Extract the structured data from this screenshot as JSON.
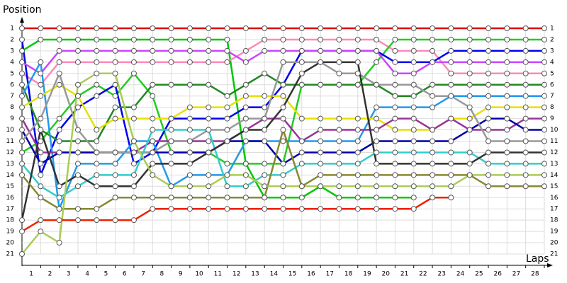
{
  "chart_data": {
    "type": "line",
    "ylabel": "Position",
    "xlabel": "Laps",
    "xlim": [
      0,
      28
    ],
    "xticks": [
      1,
      2,
      3,
      4,
      5,
      6,
      7,
      8,
      9,
      10,
      11,
      12,
      13,
      14,
      15,
      16,
      17,
      18,
      19,
      20,
      21,
      22,
      23,
      24,
      25,
      26,
      27,
      28
    ],
    "ylim": [
      1,
      21
    ],
    "yticks": [
      1,
      2,
      3,
      4,
      5,
      6,
      7,
      8,
      9,
      10,
      11,
      12,
      13,
      14,
      15,
      16,
      17,
      18,
      19,
      20,
      21
    ],
    "y_inverted": true,
    "grid": true,
    "series": [
      {
        "color": "#e00000",
        "values": [
          1,
          1,
          1,
          1,
          1,
          1,
          1,
          1,
          1,
          1,
          1,
          1,
          1,
          1,
          1,
          1,
          1,
          1,
          1,
          1,
          1,
          1,
          1,
          1,
          1,
          1,
          1,
          1,
          1
        ]
      },
      {
        "color": "#00c800",
        "values": [
          3,
          2,
          2,
          2,
          2,
          2,
          2,
          2,
          2,
          2,
          2,
          2,
          13,
          16,
          16,
          16,
          15,
          16,
          16,
          16,
          16,
          16,
          null,
          null,
          null,
          null,
          null,
          null,
          null
        ]
      },
      {
        "color": "#ff88bb",
        "values": [
          5,
          6,
          4,
          4,
          4,
          4,
          4,
          4,
          4,
          4,
          4,
          4,
          3,
          2,
          2,
          2,
          2,
          2,
          2,
          2,
          3,
          3,
          3,
          5,
          5,
          5,
          5,
          5,
          5
        ]
      },
      {
        "color": "#22cc22",
        "values": [
          12,
          11,
          9,
          7,
          6,
          7,
          5,
          7,
          12,
          12,
          12,
          13,
          13,
          13,
          13,
          6,
          6,
          6,
          6,
          4,
          2,
          2,
          2,
          2,
          2,
          2,
          2,
          2,
          2
        ]
      },
      {
        "color": "#0000ee",
        "values": [
          2,
          14,
          10,
          8,
          7,
          6,
          13,
          12,
          9,
          9,
          9,
          9,
          8,
          8,
          6,
          3,
          3,
          3,
          3,
          3,
          4,
          4,
          4,
          3,
          3,
          3,
          3,
          3,
          3
        ]
      },
      {
        "color": "#cc44ff",
        "values": [
          4,
          5,
          3,
          3,
          3,
          3,
          3,
          3,
          3,
          3,
          3,
          3,
          4,
          3,
          3,
          3,
          3,
          3,
          3,
          3,
          5,
          5,
          4,
          4,
          4,
          4,
          4,
          4,
          4
        ]
      },
      {
        "color": "#228822",
        "values": [
          6,
          10,
          11,
          11,
          11,
          8,
          8,
          6,
          6,
          6,
          6,
          7,
          6,
          5,
          6,
          6,
          6,
          6,
          6,
          6,
          7,
          7,
          6,
          6,
          6,
          6,
          6,
          6,
          6
        ]
      },
      {
        "color": "#2299ee",
        "values": [
          7,
          4,
          17,
          13,
          13,
          13,
          11,
          11,
          15,
          14,
          14,
          14,
          11,
          11,
          11,
          11,
          11,
          11,
          11,
          8,
          8,
          8,
          8,
          7,
          7,
          7,
          7,
          7,
          7
        ]
      },
      {
        "color": "#e8e000",
        "values": [
          8,
          7,
          6,
          7,
          10,
          9,
          9,
          9,
          9,
          8,
          8,
          8,
          7,
          7,
          7,
          9,
          9,
          9,
          9,
          9,
          10,
          10,
          10,
          9,
          9,
          8,
          8,
          8,
          8
        ]
      },
      {
        "color": "#993399",
        "values": [
          9,
          12,
          12,
          12,
          12,
          12,
          12,
          11,
          11,
          11,
          11,
          11,
          10,
          9,
          9,
          11,
          10,
          10,
          10,
          10,
          9,
          9,
          10,
          9,
          10,
          10,
          10,
          9,
          9
        ]
      },
      {
        "color": "#0000aa",
        "values": [
          10,
          13,
          12,
          12,
          12,
          12,
          12,
          12,
          12,
          12,
          12,
          11,
          11,
          11,
          13,
          12,
          12,
          12,
          12,
          11,
          11,
          11,
          11,
          11,
          10,
          9,
          9,
          10,
          10
        ]
      },
      {
        "color": "#999999",
        "values": [
          11,
          9,
          5,
          10,
          12,
          12,
          12,
          12,
          11,
          11,
          10,
          10,
          9,
          9,
          4,
          4,
          4,
          5,
          5,
          6,
          6,
          6,
          7,
          7,
          8,
          11,
          11,
          11,
          11
        ]
      },
      {
        "color": "#33cccc",
        "values": [
          13,
          15,
          16,
          15,
          14,
          14,
          14,
          10,
          10,
          10,
          10,
          15,
          15,
          14,
          14,
          13,
          13,
          13,
          13,
          12,
          12,
          12,
          12,
          12,
          12,
          13,
          13,
          13,
          13
        ]
      },
      {
        "color": "#333333",
        "values": [
          18,
          10,
          15,
          14,
          15,
          15,
          15,
          13,
          13,
          13,
          12,
          11,
          10,
          10,
          8,
          5,
          4,
          4,
          4,
          13,
          13,
          13,
          13,
          13,
          13,
          12,
          12,
          12,
          12
        ]
      },
      {
        "color": "#888833",
        "values": [
          14,
          16,
          17,
          17,
          17,
          16,
          16,
          16,
          16,
          16,
          16,
          16,
          16,
          16,
          10,
          15,
          14,
          14,
          14,
          14,
          14,
          14,
          14,
          14,
          14,
          15,
          15,
          15,
          15
        ]
      },
      {
        "color": "#aacc55",
        "values": [
          21,
          19,
          20,
          6,
          5,
          5,
          11,
          14,
          15,
          15,
          15,
          14,
          14,
          15,
          15,
          15,
          15,
          15,
          15,
          15,
          15,
          15,
          15,
          15,
          14,
          14,
          14,
          14,
          14
        ]
      },
      {
        "color": "#ee2200",
        "values": [
          19,
          18,
          18,
          18,
          18,
          18,
          18,
          17,
          17,
          17,
          17,
          17,
          17,
          17,
          17,
          17,
          17,
          17,
          17,
          17,
          17,
          17,
          16,
          16,
          null,
          null,
          null,
          null,
          null
        ]
      }
    ]
  }
}
